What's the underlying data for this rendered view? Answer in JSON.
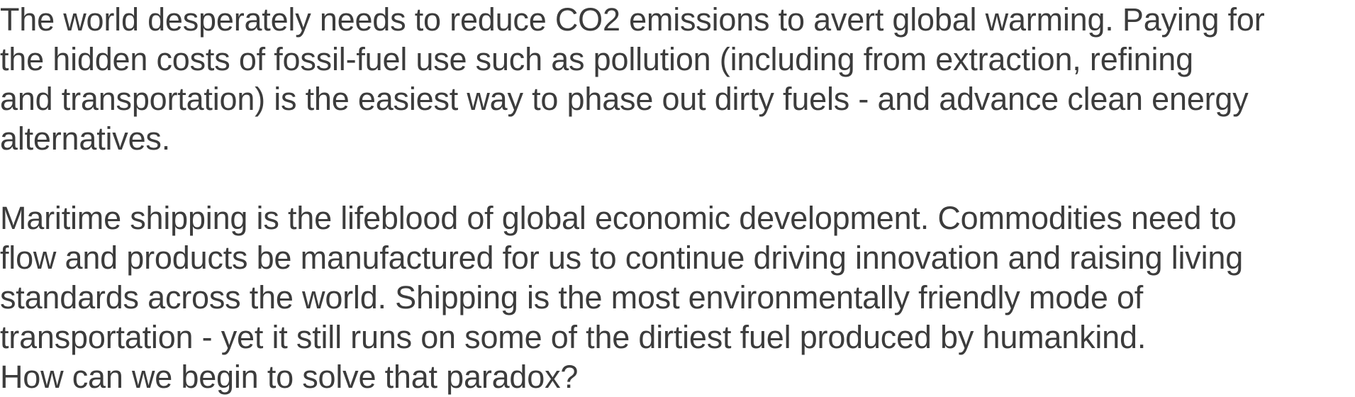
{
  "paragraphs": [
    {
      "lines": [
        "The world desperately needs to reduce CO2 emissions to avert global warming. Paying for",
        "the hidden costs of fossil-fuel use such as pollution (including from extraction, refining",
        "and transportation) is the easiest way to phase out dirty fuels - and advance clean energy",
        "alternatives."
      ]
    },
    {
      "lines": [
        "Maritime shipping is the lifeblood of global economic development. Commodities need to",
        "flow and products be manufactured for us to continue driving innovation and raising living",
        "standards across the world. Shipping is the most environmentally friendly mode of",
        "transportation - yet it still runs on some of the dirtiest fuel produced by humankind.",
        "How can we begin to solve that paradox?"
      ]
    }
  ],
  "colors": {
    "text": "#3c3c3c",
    "background": "#ffffff"
  }
}
